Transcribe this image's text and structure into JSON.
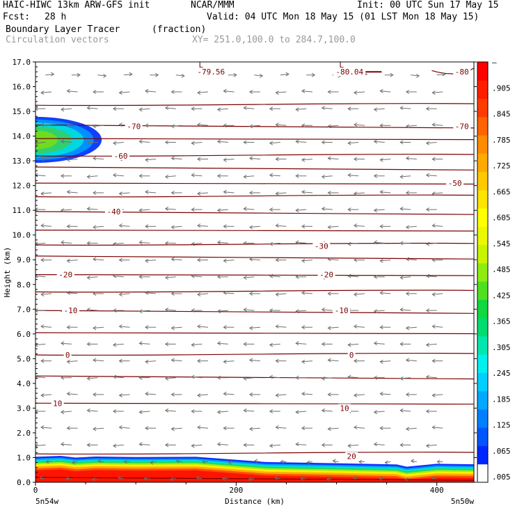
{
  "header": {
    "model": "HAIC-HIWC 13km ARW-GFS init",
    "org": "NCAR/MMM",
    "init": "Init: 00 UTC Sun 17 May 15",
    "fcst_label": "Fcst:",
    "fcst_value": "28 h",
    "valid": "Valid: 04 UTC Mon 18 May 15 (01 LST Mon 18 May 15)",
    "field": "Boundary Layer Tracer",
    "field_units": "(fraction)",
    "field2": "Circulation vectors",
    "xy": "XY= 251.0,100.0 to 284.7,100.0"
  },
  "colors": {
    "contour": "#7a0000",
    "vector": "#6e6e6e",
    "colorbar": [
      "#ffffff",
      "#0026ff",
      "#0055ff",
      "#0080ff",
      "#00a8ff",
      "#00d0ff",
      "#00f0f0",
      "#00e8b0",
      "#00dc70",
      "#10d840",
      "#50e020",
      "#90ec10",
      "#c8f400",
      "#ecf800",
      "#ffff00",
      "#ffe400",
      "#ffc800",
      "#ffaa00",
      "#ff8c00",
      "#ff6400",
      "#ff3c00",
      "#ff1e00",
      "#ff0000"
    ]
  },
  "chart_data": {
    "type": "heatmap",
    "title": "Boundary Layer Tracer",
    "xlabel": "Distance (km)",
    "ylabel": "Height (km)",
    "xlim": [
      0,
      437
    ],
    "ylim": [
      0,
      17
    ],
    "x_ticks": [
      "0",
      "200",
      "400"
    ],
    "x_tick_values": [
      0,
      200,
      400
    ],
    "x_end_labels": [
      "5n54w",
      "5n50w"
    ],
    "y_ticks": [
      "0.0",
      "1.0",
      "2.0",
      "3.0",
      "4.0",
      "5.0",
      "6.0",
      "7.0",
      "8.0",
      "9.0",
      "10.0",
      "11.0",
      "12.0",
      "13.0",
      "14.0",
      "15.0",
      "16.0",
      "17.0"
    ],
    "colorbar_labels": [
      ".005",
      ".065",
      ".125",
      ".185",
      ".245",
      ".305",
      ".365",
      ".425",
      ".485",
      ".545",
      ".605",
      ".665",
      ".725",
      ".785",
      ".845",
      ".905",
      "–"
    ],
    "contour_labels": [
      {
        "text": "-79.56",
        "x": 175,
        "y": 16.6
      },
      {
        "text": "-80.04",
        "x": 313,
        "y": 16.6
      },
      {
        "text": "-80",
        "x": 425,
        "y": 16.6
      },
      {
        "text": "-70",
        "x": 98,
        "y": 14.4
      },
      {
        "text": "-70",
        "x": 425,
        "y": 14.4
      },
      {
        "text": "-60",
        "x": 85,
        "y": 13.2
      },
      {
        "text": "-50",
        "x": 418,
        "y": 12.1
      },
      {
        "text": "-40",
        "x": 78,
        "y": 10.95
      },
      {
        "text": "-30",
        "x": 285,
        "y": 9.55
      },
      {
        "text": "-20",
        "x": 30,
        "y": 8.4
      },
      {
        "text": "-20",
        "x": 290,
        "y": 8.4
      },
      {
        "text": "-10",
        "x": 35,
        "y": 6.95
      },
      {
        "text": "-10",
        "x": 305,
        "y": 6.95
      },
      {
        "text": "0",
        "x": 32,
        "y": 5.15
      },
      {
        "text": "0",
        "x": 315,
        "y": 5.15
      },
      {
        "text": "10",
        "x": 22,
        "y": 3.2
      },
      {
        "text": "10",
        "x": 308,
        "y": 3.0
      },
      {
        "text": "20",
        "x": 315,
        "y": 1.05
      }
    ],
    "low_markers": [
      {
        "text": "L",
        "x": 165,
        "y": 16.95
      },
      {
        "text": "L",
        "x": 305,
        "y": 16.95
      }
    ],
    "wind_direction": "westward"
  }
}
